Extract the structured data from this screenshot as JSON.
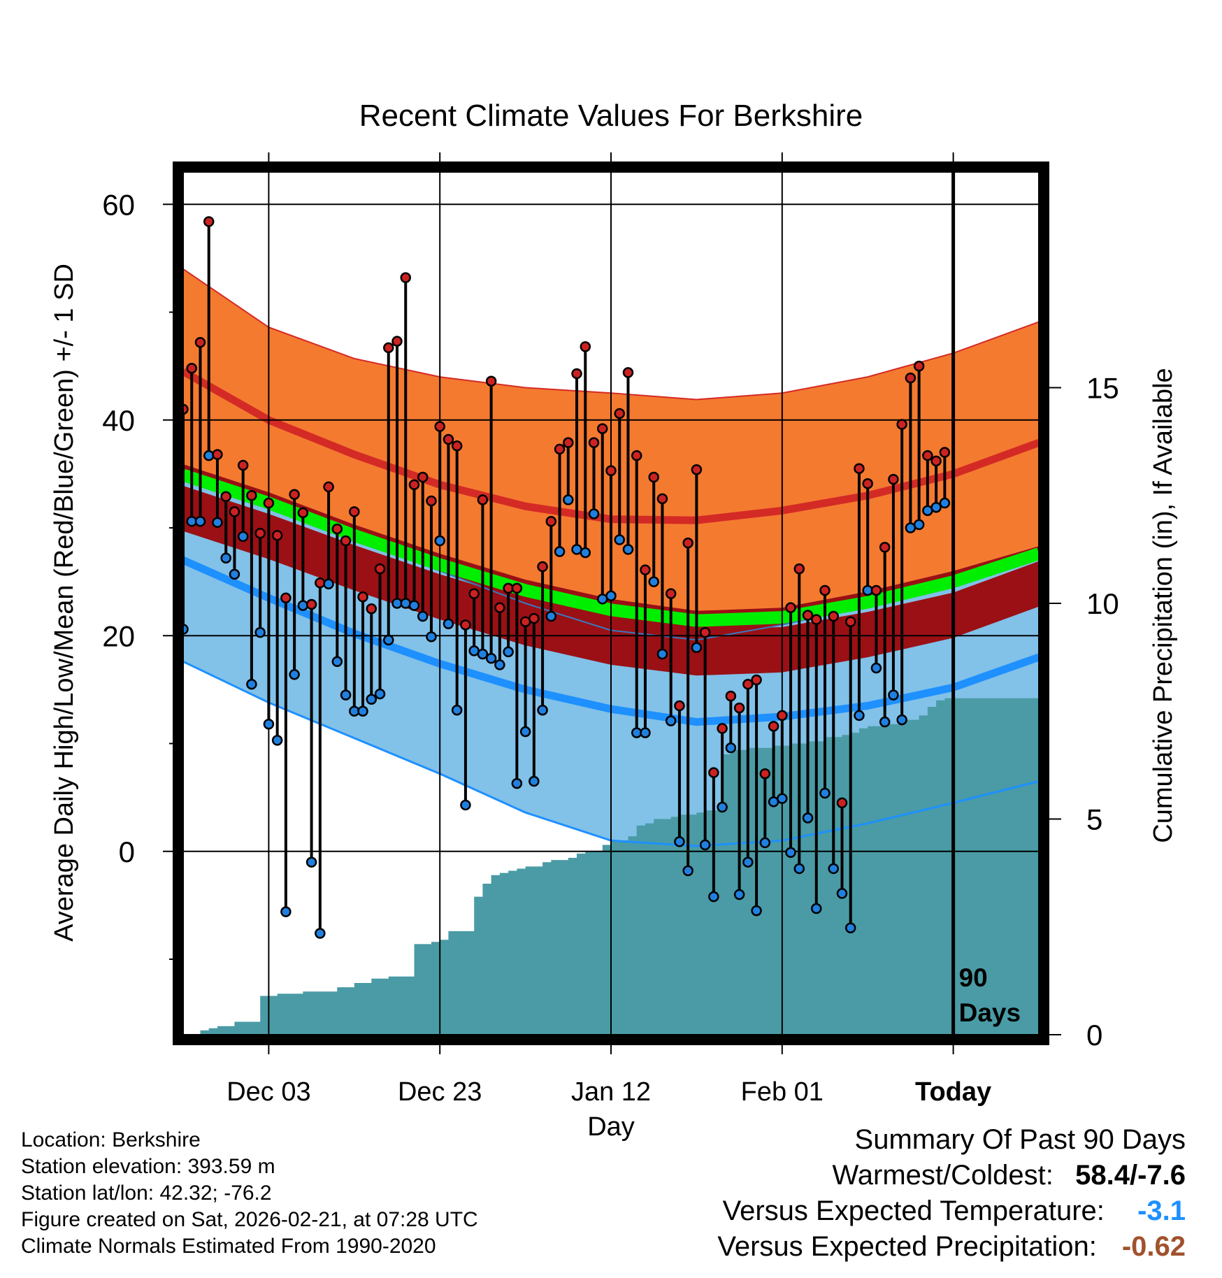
{
  "chart_data": {
    "type": "line",
    "title": "Recent Climate Values For Berkshire",
    "xlabel": "Day",
    "ylabel": "Average Daily High/Low/Mean (Red/Blue/Green) +/- 1 SD",
    "y2label": "Cumulative Precipitation (in), If Available",
    "ylim": [
      -17,
      63
    ],
    "y2lim": [
      0,
      20
    ],
    "xlim": [
      1,
      101
    ],
    "x_ticks": [
      {
        "day": 11,
        "label": "Dec 03"
      },
      {
        "day": 31,
        "label": "Dec 23"
      },
      {
        "day": 51,
        "label": "Jan 12"
      },
      {
        "day": 71,
        "label": "Feb 01"
      },
      {
        "day": 91,
        "label": "Today"
      }
    ],
    "y_ticks": [
      "0",
      "20",
      "40",
      "60"
    ],
    "y2_ticks": [
      "0",
      "5",
      "10",
      "15"
    ],
    "today_day": 91,
    "today_annotation": [
      "90",
      "Days"
    ],
    "colors": {
      "high_band": "#f47a30",
      "high_mean": "#d42a25",
      "mean_band": "#9a1015",
      "mean_line": "#00ee00",
      "low_band": "#82c1e8",
      "low_mean": "#1e90ff",
      "precip": "#4a9ba5",
      "high_marker": "#cc2222",
      "low_marker": "#2080e0"
    },
    "normals": {
      "days": [
        1,
        11,
        21,
        31,
        41,
        51,
        61,
        71,
        81,
        91,
        101
      ],
      "high_upper": [
        54.0,
        48.6,
        45.7,
        44.0,
        43.0,
        42.5,
        41.9,
        42.5,
        44.0,
        46.2,
        49.1
      ],
      "high_mean": [
        44.5,
        40.0,
        36.8,
        34.0,
        32.0,
        30.8,
        30.7,
        31.6,
        33.0,
        35.0,
        37.9
      ],
      "high_lower": [
        34.8,
        32.0,
        29.0,
        26.0,
        23.0,
        20.5,
        19.6,
        21.0,
        22.8,
        25.0,
        27.2
      ],
      "mean_upper": [
        35.9,
        33.3,
        30.3,
        27.6,
        25.2,
        23.4,
        22.3,
        22.6,
        24.1,
        26.0,
        28.3
      ],
      "mean_lower": [
        33.9,
        31.3,
        28.4,
        25.7,
        23.3,
        21.5,
        20.5,
        20.8,
        22.2,
        24.0,
        26.9
      ],
      "mean_line": [
        34.9,
        32.3,
        29.3,
        26.6,
        24.2,
        22.4,
        21.4,
        21.7,
        23.1,
        25.0,
        27.6
      ],
      "low_mean": [
        27.0,
        23.5,
        20.2,
        17.4,
        15.0,
        13.2,
        12.0,
        12.5,
        13.5,
        15.2,
        18.0
      ],
      "low_lower": [
        17.6,
        13.8,
        10.5,
        7.2,
        3.6,
        1.0,
        0.5,
        1.0,
        2.6,
        4.5,
        6.5
      ]
    },
    "series": [
      {
        "name": "High",
        "values": [
          41.0,
          44.8,
          47.2,
          58.4,
          36.8,
          32.9,
          31.5,
          35.8,
          33.0,
          29.5,
          32.3,
          29.3,
          23.5,
          33.1,
          31.4,
          22.9,
          24.9,
          33.8,
          29.9,
          28.8,
          31.5,
          23.6,
          22.5,
          26.2,
          46.7,
          47.3,
          53.2,
          34.0,
          34.7,
          32.5,
          39.4,
          38.2,
          37.6,
          21.0,
          23.9,
          32.6,
          43.6,
          22.6,
          24.4,
          24.4,
          21.3,
          21.6,
          26.4,
          30.6,
          37.3,
          37.9,
          44.3,
          46.8,
          37.9,
          39.2,
          35.3,
          40.6,
          44.4,
          36.7,
          26.1,
          34.7,
          32.7,
          23.9,
          13.5,
          28.6,
          35.4,
          20.3,
          7.3,
          11.4,
          14.4,
          13.3,
          15.5,
          15.9,
          7.2,
          11.6,
          12.6,
          22.6,
          26.2,
          21.9,
          21.5,
          24.2,
          21.8,
          4.5,
          21.3,
          35.5,
          34.1,
          24.2,
          28.2,
          34.5,
          39.6,
          43.9,
          45.0,
          36.7,
          36.2,
          37.0
        ]
      },
      {
        "name": "Low",
        "values": [
          20.6,
          30.6,
          30.6,
          36.7,
          30.5,
          27.2,
          25.7,
          29.2,
          15.5,
          20.3,
          11.8,
          10.3,
          -5.6,
          16.4,
          22.8,
          -1.0,
          -7.6,
          24.8,
          17.6,
          14.5,
          13.0,
          13.0,
          14.1,
          14.6,
          19.6,
          23.0,
          23.0,
          22.8,
          21.8,
          19.9,
          28.8,
          21.1,
          13.1,
          4.3,
          18.6,
          18.3,
          17.9,
          17.3,
          18.5,
          6.3,
          11.1,
          6.5,
          13.1,
          21.8,
          27.8,
          32.6,
          28.0,
          27.7,
          31.3,
          23.4,
          23.7,
          28.9,
          28.0,
          11.0,
          11.0,
          25.0,
          18.3,
          12.1,
          0.9,
          -1.8,
          18.9,
          0.6,
          -4.2,
          4.1,
          9.6,
          -4.0,
          -1.0,
          -5.5,
          0.8,
          4.6,
          4.9,
          -0.1,
          -1.6,
          3.1,
          -5.3,
          5.4,
          -1.6,
          -3.9,
          -7.1,
          12.6,
          24.2,
          17.0,
          12.0,
          14.5,
          12.2,
          30.0,
          30.3,
          31.6,
          31.9,
          32.3
        ]
      },
      {
        "name": "Cumulative Precipitation",
        "unit": "in",
        "values": [
          0.0,
          0.1,
          0.15,
          0.2,
          0.2,
          0.3,
          0.3,
          0.3,
          0.9,
          0.9,
          0.95,
          0.95,
          0.95,
          1.0,
          1.0,
          1.0,
          1.0,
          1.1,
          1.1,
          1.2,
          1.2,
          1.3,
          1.3,
          1.35,
          1.35,
          1.35,
          2.1,
          2.1,
          2.15,
          2.2,
          2.4,
          2.4,
          2.4,
          3.2,
          3.5,
          3.7,
          3.75,
          3.8,
          3.85,
          3.9,
          3.9,
          4.0,
          4.05,
          4.05,
          4.1,
          4.2,
          4.25,
          4.25,
          4.4,
          4.5,
          4.5,
          4.6,
          4.85,
          4.9,
          5.0,
          5.0,
          5.05,
          5.1,
          5.1,
          5.15,
          5.2,
          5.2,
          6.5,
          6.6,
          6.6,
          6.65,
          6.65,
          6.65,
          6.7,
          6.7,
          6.75,
          6.75,
          6.8,
          6.8,
          6.9,
          6.9,
          6.95,
          7.0,
          7.1,
          7.15,
          7.15,
          7.2,
          7.2,
          7.3,
          7.3,
          7.4,
          7.6,
          7.75,
          7.8,
          7.8
        ]
      }
    ]
  },
  "footer": {
    "location": "Location: Berkshire",
    "elevation": "Station elevation: 393.59 m",
    "latlon": "Station lat/lon: 42.32; -76.2",
    "created": "Figure created on Sat, 2026-02-21, at 07:28 UTC",
    "normals": "Climate Normals Estimated From 1990-2020"
  },
  "summary": {
    "title": "Summary Of Past 90 Days",
    "warmest_label": "Warmest/Coldest:",
    "warmest_value": "58.4/-7.6",
    "temp_label": "Versus Expected Temperature:",
    "temp_value": "-3.1",
    "precip_label": "Versus Expected Precipitation:",
    "precip_value": "-0.62"
  }
}
